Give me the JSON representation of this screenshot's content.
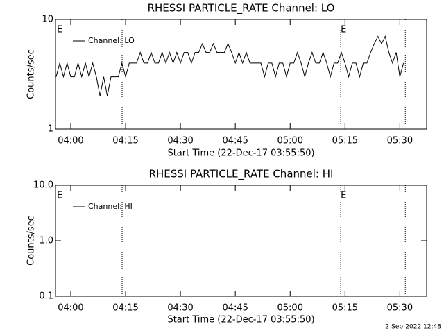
{
  "chart_data": [
    {
      "type": "line",
      "title": "RHESSI PARTICLE_RATE Channel: LO",
      "xlabel": "Start Time (22-Dec-17 03:55:50)",
      "ylabel": "Counts/sec",
      "x": [
        236,
        237,
        238,
        239,
        240,
        241,
        242,
        243,
        244,
        245,
        246,
        247,
        248,
        249,
        250,
        251,
        252,
        253,
        254,
        255,
        256,
        257,
        258,
        259,
        260,
        261,
        262,
        263,
        264,
        265,
        266,
        267,
        268,
        269,
        270,
        271,
        272,
        273,
        274,
        275,
        276,
        277,
        278,
        279,
        280,
        281,
        282,
        283,
        284,
        285,
        286,
        287,
        288,
        289,
        290,
        291,
        292,
        293,
        294,
        295,
        296,
        297,
        298,
        299,
        300,
        301,
        302,
        303,
        304,
        305,
        306,
        307,
        308,
        309,
        310,
        311,
        312,
        313,
        314,
        315,
        316,
        317,
        318,
        319,
        320,
        321,
        322,
        323,
        324,
        325,
        326,
        327,
        328,
        329,
        330,
        331
      ],
      "series": [
        {
          "name": "Channel: LO",
          "color": "#000000",
          "values": [
            3,
            4,
            3,
            4,
            3,
            3,
            4,
            3,
            4,
            3,
            4,
            3,
            2,
            3,
            2,
            3,
            3,
            3,
            4,
            3,
            4,
            4,
            4,
            5,
            4,
            4,
            5,
            4,
            4,
            5,
            4,
            5,
            4,
            5,
            4,
            5,
            5,
            4,
            5,
            5,
            6,
            5,
            5,
            6,
            5,
            5,
            5,
            6,
            5,
            4,
            5,
            4,
            5,
            4,
            4,
            4,
            4,
            3,
            4,
            4,
            3,
            4,
            4,
            3,
            4,
            4,
            5,
            4,
            3,
            4,
            5,
            4,
            4,
            5,
            4,
            3,
            4,
            4,
            5,
            4,
            3,
            4,
            4,
            3,
            4,
            4,
            5,
            6,
            7,
            6,
            7,
            5,
            4,
            5,
            3,
            4
          ]
        }
      ],
      "xlim": [
        235.83,
        337.33
      ],
      "xticks": [
        {
          "value": 240,
          "label": "04:00"
        },
        {
          "value": 255,
          "label": "04:15"
        },
        {
          "value": 270,
          "label": "04:30"
        },
        {
          "value": 285,
          "label": "04:45"
        },
        {
          "value": 300,
          "label": "05:00"
        },
        {
          "value": 315,
          "label": "05:15"
        },
        {
          "value": 330,
          "label": "05:30"
        }
      ],
      "ylim": [
        1,
        10
      ],
      "yticks": [
        1,
        10
      ],
      "log_y": true,
      "vlines": [
        254.05,
        313.83,
        331.5
      ],
      "annotations": [
        {
          "x": 236.2,
          "text": "E"
        },
        {
          "x": 313.83,
          "text": "E"
        }
      ]
    },
    {
      "type": "line",
      "title": "RHESSI PARTICLE_RATE Channel: HI",
      "xlabel": "Start Time (22-Dec-17 03:55:50)",
      "ylabel": "Counts/sec",
      "x": [],
      "series": [
        {
          "name": "Channel: HI",
          "color": "#000000",
          "values": []
        }
      ],
      "xlim": [
        235.83,
        337.33
      ],
      "xticks": [
        {
          "value": 240,
          "label": "04:00"
        },
        {
          "value": 255,
          "label": "04:15"
        },
        {
          "value": 270,
          "label": "04:30"
        },
        {
          "value": 285,
          "label": "04:45"
        },
        {
          "value": 300,
          "label": "05:00"
        },
        {
          "value": 315,
          "label": "05:15"
        },
        {
          "value": 330,
          "label": "05:30"
        }
      ],
      "ylim": [
        0.1,
        10
      ],
      "yticks": [
        0.1,
        {
          "value": 1,
          "label": "1.0"
        },
        {
          "value": 10,
          "label": "10.0"
        }
      ],
      "log_y": true,
      "vlines": [
        254.05,
        313.83,
        331.5
      ],
      "annotations": [
        {
          "x": 236.2,
          "text": "E"
        },
        {
          "x": 313.83,
          "text": "E"
        }
      ]
    }
  ],
  "footer": "2-Sep-2022 12:48"
}
